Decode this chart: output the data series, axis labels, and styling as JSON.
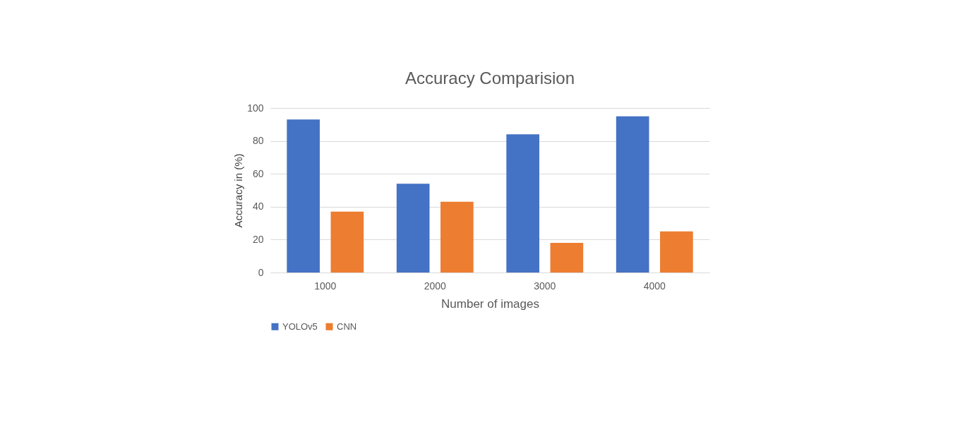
{
  "chart_data": {
    "type": "bar",
    "title": "Accuracy Comparision",
    "xlabel": "Number of images",
    "ylabel": "Accuracy in (%)",
    "categories": [
      "1000",
      "2000",
      "3000",
      "4000"
    ],
    "series": [
      {
        "name": "YOLOv5",
        "color": "#4472c4",
        "values": [
          93,
          54,
          84,
          95
        ]
      },
      {
        "name": "CNN",
        "color": "#ed7d31",
        "values": [
          37,
          43,
          18,
          25
        ]
      }
    ],
    "ylim": [
      0,
      100
    ],
    "yticks": [
      0,
      20,
      40,
      60,
      80,
      100
    ],
    "grid": "y",
    "legend": "bottom"
  }
}
